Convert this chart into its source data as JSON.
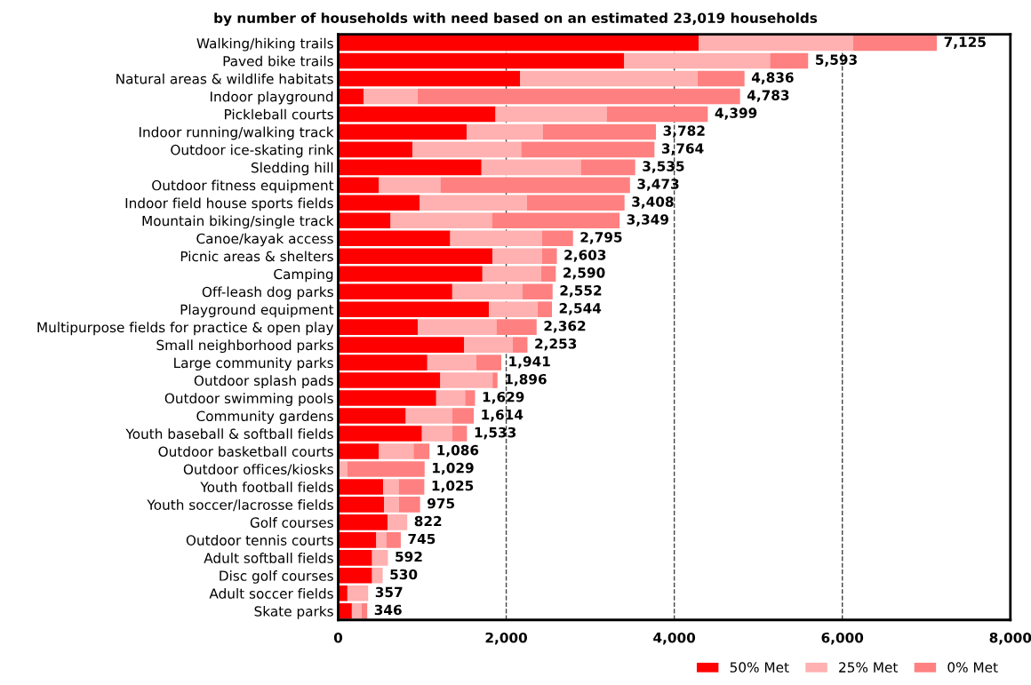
{
  "chart_data": {
    "type": "bar",
    "orientation": "horizontal",
    "stacked": true,
    "title": "by number of households with need based on an estimated 23,019 households",
    "categories": [
      "Walking/hiking trails",
      "Paved bike trails",
      "Natural areas & wildlife habitats",
      "Indoor playground",
      "Pickleball courts",
      "Indoor running/walking track",
      "Outdoor ice-skating rink",
      "Sledding hill",
      "Outdoor fitness equipment",
      "Indoor field house sports fields",
      "Mountain biking/single track",
      "Canoe/kayak access",
      "Picnic areas & shelters",
      "Camping",
      "Off-leash dog parks",
      "Playground equipment",
      "Multipurpose fields for practice & open play",
      "Small neighborhood parks",
      "Large community parks",
      "Outdoor splash pads",
      "Outdoor swimming pools",
      "Community gardens",
      "Youth baseball & softball fields",
      "Outdoor basketball courts",
      "Outdoor offices/kiosks",
      "Youth football fields",
      "Youth soccer/lacrosse fields",
      "Golf courses",
      "Outdoor tennis courts",
      "Adult softball fields",
      "Disc golf courses",
      "Adult soccer fields",
      "Skate parks"
    ],
    "series": [
      {
        "name": "50% Met",
        "color": "#ff0000",
        "values": [
          4290,
          3401,
          2167,
          305,
          1873,
          1529,
          883,
          1706,
          486,
          972,
          624,
          1334,
          1837,
          1717,
          1358,
          1795,
          947,
          1500,
          1061,
          1216,
          1167,
          805,
          997,
          486,
          0,
          535,
          546,
          589,
          454,
          404,
          404,
          110,
          163
        ]
      },
      {
        "name": "25% Met",
        "color": "#ffb0b0",
        "values": [
          1840,
          1738,
          2110,
          639,
          1322,
          904,
          1295,
          1181,
          730,
          1273,
          1206,
          1092,
          589,
          698,
          837,
          578,
          936,
          578,
          581,
          621,
          344,
          553,
          361,
          411,
          110,
          185,
          177,
          233,
          117,
          188,
          126,
          247,
          114
        ]
      },
      {
        "name": "0% Met",
        "color": "#ff8080",
        "values": [
          995,
          454,
          559,
          3839,
          1204,
          1349,
          1586,
          648,
          2257,
          1163,
          1519,
          369,
          177,
          175,
          357,
          171,
          479,
          175,
          299,
          59,
          118,
          256,
          175,
          189,
          919,
          305,
          252,
          0,
          174,
          0,
          0,
          0,
          69
        ]
      }
    ],
    "totals": [
      "7,125",
      "5,593",
      "4,836",
      "4,783",
      "4,399",
      "3,782",
      "3,764",
      "3,535",
      "3,473",
      "3,408",
      "3,349",
      "2,795",
      "2,603",
      "2,590",
      "2,552",
      "2,544",
      "2,362",
      "2,253",
      "1,941",
      "1,896",
      "1,629",
      "1,614",
      "1,533",
      "1,086",
      "1,029",
      "1,025",
      "975",
      "822",
      "745",
      "592",
      "530",
      "357",
      "346"
    ],
    "xlim": [
      0,
      8000
    ],
    "xticks": [
      0,
      {
        "value": 2000,
        "label": "2,000"
      },
      {
        "value": 4000,
        "label": "4,000"
      },
      {
        "value": 6000,
        "label": "6,000"
      },
      {
        "value": 8000,
        "label": "8,000"
      }
    ],
    "grid": "x",
    "line_style": "dashed",
    "legend": "bottom right"
  }
}
